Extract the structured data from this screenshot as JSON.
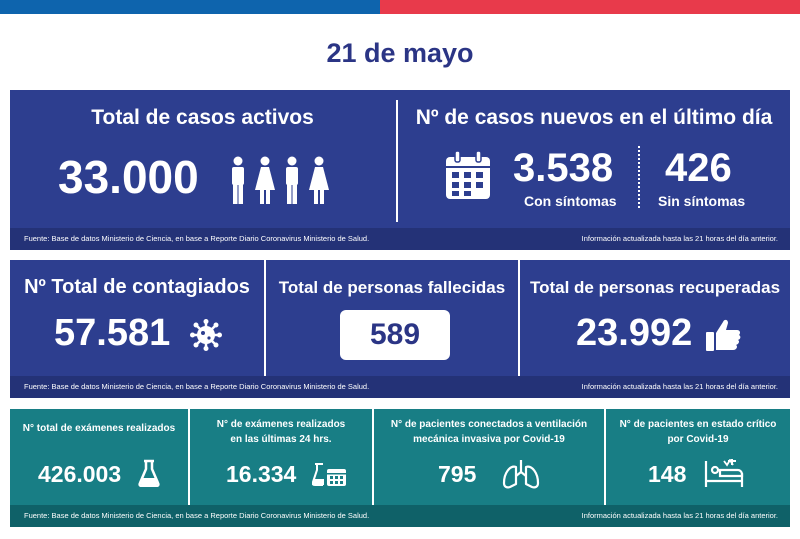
{
  "header": {
    "date": "21 de mayo"
  },
  "colors": {
    "top_bar_blue": "#0e64ad",
    "top_bar_red": "#e83a4b",
    "date_text": "#2b3585",
    "navy_panel": "#2d3e8f",
    "teal_panel": "#187e85"
  },
  "panel1": {
    "active": {
      "title": "Total de casos activos",
      "value": "33.000",
      "icon": "people-icon"
    },
    "new_cases": {
      "title": "Nº de casos nuevos en el último día",
      "icon": "calendar-icon",
      "with_symptoms_value": "3.538",
      "with_symptoms_label": "Con síntomas",
      "without_symptoms_value": "426",
      "without_symptoms_label": "Sin síntomas"
    },
    "source": "Fuente: Base de datos Ministerio de Ciencia, en base a Reporte Diario Coronavirus Ministerio de Salud.",
    "updated": "Información actualizada hasta las 21 horas  del día anterior."
  },
  "panel2": {
    "infected": {
      "title": "Nº Total de contagiados",
      "value": "57.581",
      "icon": "virus-icon"
    },
    "deceased": {
      "title": "Total de personas fallecidas",
      "value": "589"
    },
    "recovered": {
      "title": "Total de personas recuperadas",
      "value": "23.992",
      "icon": "thumbs-up-icon"
    },
    "source": "Fuente: Base de datos Ministerio de Ciencia, en base a Reporte Diario Coronavirus Ministerio de Salud.",
    "updated": "Información actualizada hasta las 21 horas  del día anterior."
  },
  "panel3": {
    "exams_total": {
      "title": "N° total de exámenes realizados",
      "value": "426.003",
      "icon": "flask-icon"
    },
    "exams_24h": {
      "title_line1": "N° de exámenes realizados",
      "title_line2": "en las últimas 24 hrs.",
      "value": "16.334",
      "icon": "flask-calendar-icon"
    },
    "ventilation": {
      "title_line1": "N° de pacientes conectados a ventilación",
      "title_line2": "mecánica invasiva por Covid-19",
      "value": "795",
      "icon": "lungs-icon"
    },
    "critical": {
      "title_line1": "N° de pacientes en estado crítico",
      "title_line2": "por Covid-19",
      "value": "148",
      "icon": "hospital-bed-icon"
    },
    "source": "Fuente: Base de datos Ministerio de Ciencia, en base a Reporte Diario Coronavirus Ministerio de Salud.",
    "updated": "Información actualizada hasta las 21 horas  del día anterior."
  }
}
